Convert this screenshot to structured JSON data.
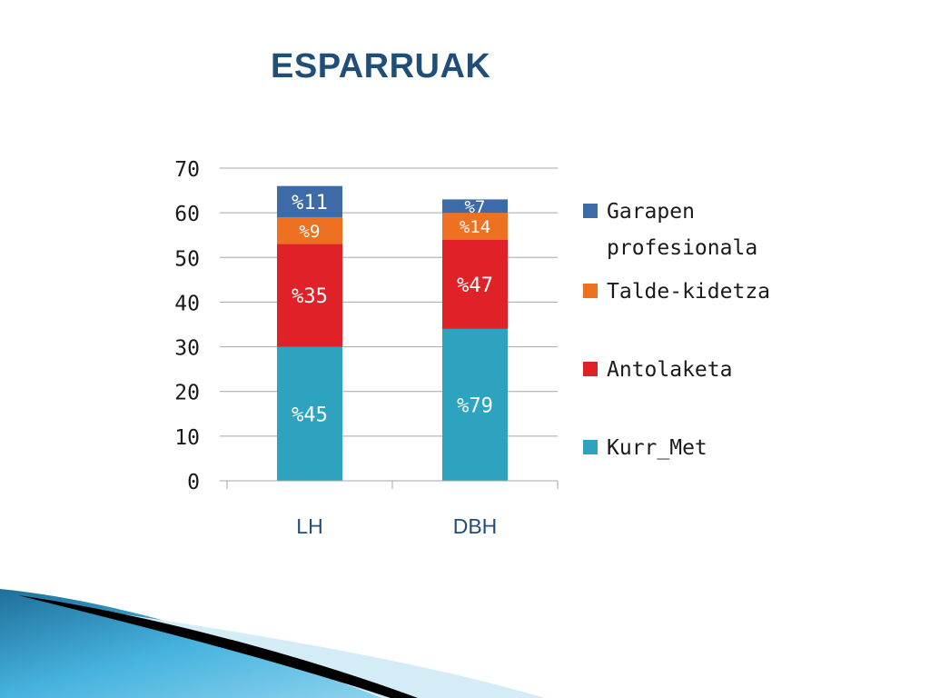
{
  "title": "ESPARRUAK",
  "chart_data": {
    "type": "bar",
    "stacked": true,
    "categories": [
      "LH",
      "DBH"
    ],
    "ylim": [
      0,
      70
    ],
    "yticks": [
      0,
      10,
      20,
      30,
      40,
      50,
      60,
      70
    ],
    "grid": true,
    "legend_position": "right",
    "series": [
      {
        "name": "Kurr_Met",
        "color": "#2ea3c0",
        "values": [
          30,
          34
        ],
        "labels": [
          "%45",
          "%79"
        ]
      },
      {
        "name": "Antolaketa",
        "color": "#e02127",
        "values": [
          23,
          20
        ],
        "labels": [
          "%35",
          "%47"
        ]
      },
      {
        "name": "Talde-kidetza",
        "color": "#ee7122",
        "values": [
          6,
          6
        ],
        "labels": [
          "%9",
          "%14"
        ]
      },
      {
        "name": "Garapen profesionala",
        "color": "#3d6ba8",
        "values": [
          7,
          3
        ],
        "labels": [
          "%11",
          "%7"
        ]
      }
    ]
  },
  "legend_order": [
    3,
    2,
    1,
    0
  ],
  "colors": {
    "title": "#1f4e79",
    "axis_label": "#1f4e79",
    "grid": "#a6a6a6",
    "decoration_blue": "#2a8fbd",
    "decoration_black": "#000000"
  }
}
